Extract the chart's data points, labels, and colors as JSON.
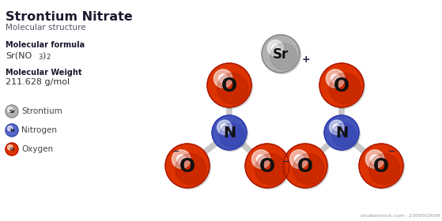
{
  "title": "Strontium Nitrate",
  "subtitle": "Molecular structure",
  "formula_label": "Molecular formula",
  "weight_label": "Molecular Weight",
  "weight": "211.628 g/mol",
  "legend": [
    {
      "symbol": "Sr",
      "name": "Strontium",
      "color": "#b0b0b0",
      "hi_color": "#e0e0e0",
      "dark_color": "#808080"
    },
    {
      "symbol": "N",
      "name": "Nitrogen",
      "color": "#5566cc",
      "hi_color": "#8899ee",
      "dark_color": "#334499"
    },
    {
      "symbol": "O",
      "name": "Oxygen",
      "color": "#dd3300",
      "hi_color": "#ff6633",
      "dark_color": "#aa1100"
    }
  ],
  "bg_color": "#ffffff",
  "bond_color": "#c8c8c8",
  "sr_color": "#b0b0b0",
  "sr_hi": "#e8e8e8",
  "sr_dark": "#787878",
  "n_color": "#4455bb",
  "n_hi": "#7788dd",
  "n_dark": "#2233aa",
  "o_color": "#dd3300",
  "o_hi": "#ff5522",
  "o_dark": "#991100",
  "ro": 28,
  "rn": 22,
  "rsr": 24,
  "n1x": 290,
  "n1y": 168,
  "n2x": 432,
  "n2y": 168,
  "srx": 355,
  "sry": 68
}
